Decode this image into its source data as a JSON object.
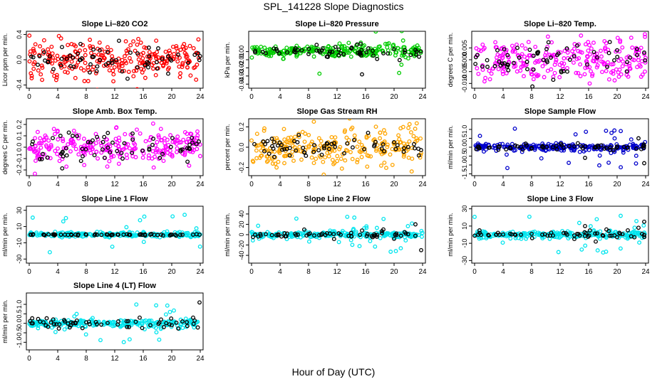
{
  "page": {
    "title": "SPL_141228  Slope Diagnostics",
    "xlabel": "Hour of Day (UTC)"
  },
  "chart_data": [
    {
      "type": "scatter",
      "title": "Slope Li–820 CO2",
      "ylabel": "Licor ppm per min.",
      "color": "#ff0000",
      "xlim": [
        0,
        24
      ],
      "ylim": [
        -0.45,
        0.45
      ],
      "xticks": [
        0,
        4,
        8,
        12,
        16,
        20,
        24
      ],
      "yticks": [
        -0.4,
        0,
        0.4
      ],
      "ytick_labels": [
        "-0.4",
        "0.0",
        "0.4"
      ],
      "grid": false,
      "spread": 0.14,
      "outlier": 0.35,
      "outlier_rate": 0.05,
      "black_spread": 0.1,
      "series": [
        {
          "name": "",
          "points": [
            [
              0.3,
              0.05
            ],
            [
              1.2,
              -0.08
            ],
            [
              2.1,
              0.12
            ],
            [
              3.4,
              -0.15
            ],
            [
              4.6,
              0.2
            ],
            [
              5.8,
              -0.1
            ],
            [
              7.2,
              0.25
            ],
            [
              8.5,
              -0.2
            ],
            [
              9.9,
              0.15
            ],
            [
              11.1,
              -0.05
            ],
            [
              12.6,
              0.3
            ],
            [
              13.8,
              -0.3
            ],
            [
              15.2,
              0.1
            ],
            [
              16.7,
              -0.12
            ],
            [
              18.1,
              0.18
            ],
            [
              19.5,
              -0.22
            ],
            [
              20.9,
              0.08
            ],
            [
              22.3,
              -0.05
            ],
            [
              23.7,
              0.1
            ]
          ]
        }
      ]
    },
    {
      "type": "scatter",
      "title": "Slope Li–820 Pressure",
      "ylabel": "kPa per min.",
      "color": "#00cc00",
      "xlim": [
        0,
        24
      ],
      "ylim": [
        -0.045,
        0.025
      ],
      "xticks": [
        0,
        4,
        8,
        12,
        16,
        20,
        24
      ],
      "yticks": [
        -0.04,
        -0.03,
        -0.02,
        -0.01,
        0
      ],
      "ytick_labels": [
        "-0.04",
        "-0.03",
        "-0.02",
        "-0.01",
        "0.00"
      ],
      "grid": false,
      "spread": 0.004,
      "outlier": 0.03,
      "outlier_rate": 0.05,
      "black_spread": 0.004,
      "series": [
        {
          "name": "",
          "points": [
            [
              0.5,
              0.001
            ],
            [
              2.0,
              -0.002
            ],
            [
              3.5,
              0.003
            ],
            [
              5.0,
              -0.001
            ],
            [
              6.5,
              0.002
            ],
            [
              8.0,
              -0.003
            ],
            [
              9.5,
              0.001
            ],
            [
              11.0,
              0.0
            ],
            [
              12.5,
              -0.002
            ],
            [
              14.0,
              0.004
            ],
            [
              15.5,
              -0.028
            ],
            [
              17.0,
              0.001
            ],
            [
              18.5,
              -0.002
            ],
            [
              20.0,
              0.003
            ],
            [
              21.5,
              -0.001
            ],
            [
              23.0,
              0.002
            ]
          ]
        }
      ]
    },
    {
      "type": "scatter",
      "title": "Slope Li–820 Temp.",
      "ylabel": "degrees C per min.",
      "color": "#ff00ff",
      "xlim": [
        0,
        24
      ],
      "ylim": [
        -0.012,
        0.012
      ],
      "xticks": [
        0,
        4,
        8,
        12,
        16,
        20,
        24
      ],
      "yticks": [
        -0.01,
        -0.005,
        0,
        0.005
      ],
      "ytick_labels": [
        "-0.010",
        "-0.005",
        "0.000",
        "0.005"
      ],
      "grid": false,
      "spread": 0.0045,
      "outlier": 0.009,
      "outlier_rate": 0.05,
      "black_spread": 0.003,
      "series": [
        {
          "name": "",
          "points": [
            [
              0.4,
              0.002
            ],
            [
              1.8,
              -0.003
            ],
            [
              3.2,
              0.004
            ],
            [
              4.6,
              -0.002
            ],
            [
              6.0,
              0.005
            ],
            [
              7.4,
              -0.004
            ],
            [
              8.8,
              0.003
            ],
            [
              10.2,
              -0.001
            ],
            [
              11.6,
              0.002
            ],
            [
              13.0,
              -0.005
            ],
            [
              14.4,
              0.006
            ],
            [
              15.8,
              -0.002
            ],
            [
              17.2,
              0.001
            ],
            [
              18.6,
              -0.003
            ],
            [
              20.0,
              0.004
            ],
            [
              21.4,
              -0.001
            ],
            [
              22.8,
              0.002
            ],
            [
              23.8,
              0.003
            ]
          ]
        }
      ]
    },
    {
      "type": "scatter",
      "title": "Slope Amb. Box Temp.",
      "ylabel": "degrees C per min.",
      "color": "#ff00ff",
      "xlim": [
        0,
        24
      ],
      "ylim": [
        -0.25,
        0.25
      ],
      "xticks": [
        0,
        4,
        8,
        12,
        16,
        20,
        24
      ],
      "yticks": [
        -0.2,
        -0.1,
        0,
        0.1,
        0.2
      ],
      "ytick_labels": [
        "-0.2",
        "-0.1",
        "0.0",
        "0.1",
        "0.2"
      ],
      "grid": false,
      "spread": 0.07,
      "outlier": 0.18,
      "outlier_rate": 0.04,
      "black_spread": 0.07,
      "series": [
        {
          "name": "",
          "points": [
            [
              0.5,
              0.05
            ],
            [
              1.9,
              -0.06
            ],
            [
              3.3,
              0.08
            ],
            [
              4.7,
              -0.04
            ],
            [
              6.1,
              0.1
            ],
            [
              7.5,
              -0.08
            ],
            [
              8.9,
              0.06
            ],
            [
              10.3,
              -0.02
            ],
            [
              11.7,
              0.04
            ],
            [
              13.1,
              -0.1
            ],
            [
              14.5,
              0.12
            ],
            [
              15.9,
              -0.03
            ],
            [
              17.3,
              0.02
            ],
            [
              18.7,
              -0.06
            ],
            [
              20.1,
              0.08
            ],
            [
              21.5,
              -0.02
            ],
            [
              22.9,
              0.04
            ],
            [
              23.8,
              0.05
            ]
          ]
        }
      ]
    },
    {
      "type": "scatter",
      "title": "Slope Gas Stream RH",
      "ylabel": "percent per min.",
      "color": "#ffa500",
      "xlim": [
        0,
        24
      ],
      "ylim": [
        -0.28,
        0.28
      ],
      "xticks": [
        0,
        4,
        8,
        12,
        16,
        20,
        24
      ],
      "yticks": [
        -0.2,
        0,
        0.2
      ],
      "ytick_labels": [
        "-0.2",
        "0.0",
        "0.2"
      ],
      "grid": false,
      "spread": 0.09,
      "outlier": 0.22,
      "outlier_rate": 0.04,
      "black_spread": 0.05,
      "series": [
        {
          "name": "",
          "points": [
            [
              0.4,
              0.03
            ],
            [
              1.8,
              -0.04
            ],
            [
              3.2,
              0.05
            ],
            [
              4.6,
              -0.02
            ],
            [
              6.0,
              0.06
            ],
            [
              7.4,
              -0.05
            ],
            [
              8.8,
              0.02
            ],
            [
              10.2,
              -0.01
            ],
            [
              11.6,
              0.04
            ],
            [
              13.0,
              -0.06
            ],
            [
              14.4,
              0.07
            ],
            [
              15.8,
              -0.02
            ],
            [
              17.2,
              0.01
            ],
            [
              18.6,
              -0.04
            ],
            [
              20.0,
              0.05
            ],
            [
              21.4,
              -0.01
            ],
            [
              22.8,
              0.03
            ]
          ]
        }
      ]
    },
    {
      "type": "scatter",
      "title": "Slope Sample Flow",
      "ylabel": "ml/min per min.",
      "color": "#0000cc",
      "xlim": [
        0,
        24
      ],
      "ylim": [
        -1.6,
        1.6
      ],
      "xticks": [
        0,
        4,
        8,
        12,
        16,
        20,
        24
      ],
      "yticks": [
        -1.5,
        -1,
        -0.5,
        0,
        0.5,
        1
      ],
      "ytick_labels": [
        "-1.5",
        "-1.0",
        "-0.5",
        "0.0",
        "0.5",
        "1.0"
      ],
      "grid": false,
      "spread": 0.1,
      "outlier": 1.2,
      "outlier_rate": 0.12,
      "black_spread": 0.08,
      "series": [
        {
          "name": "",
          "points": [
            [
              0.5,
              0.02
            ],
            [
              2.0,
              -0.03
            ],
            [
              3.5,
              0.04
            ],
            [
              5.0,
              -0.02
            ],
            [
              6.5,
              0.03
            ],
            [
              8.0,
              -0.04
            ],
            [
              9.5,
              0.02
            ],
            [
              11.0,
              0.0
            ],
            [
              12.5,
              -0.02
            ],
            [
              14.0,
              0.05
            ],
            [
              15.5,
              -0.6
            ],
            [
              17.0,
              0.02
            ],
            [
              18.5,
              -0.03
            ],
            [
              20.0,
              0.04
            ],
            [
              21.5,
              -0.02
            ],
            [
              23.0,
              0.5
            ],
            [
              23.8,
              -0.9
            ]
          ]
        }
      ]
    },
    {
      "type": "scatter",
      "title": "Slope Line 1 Flow",
      "ylabel": "ml/min per min.",
      "color": "#00e5ee",
      "xlim": [
        0,
        24
      ],
      "ylim": [
        -35,
        35
      ],
      "xticks": [
        0,
        4,
        8,
        12,
        16,
        20,
        24
      ],
      "yticks": [
        -30,
        -10,
        10,
        30
      ],
      "ytick_labels": [
        "-30",
        "-10",
        "10",
        "30"
      ],
      "grid": false,
      "spread": 1.5,
      "outlier": 25,
      "outlier_rate": 0.08,
      "black_spread": 0.5,
      "series": [
        {
          "name": "",
          "points": [
            [
              0.5,
              0
            ],
            [
              2,
              0
            ],
            [
              3.5,
              0
            ],
            [
              5,
              0
            ],
            [
              6.5,
              0
            ],
            [
              8,
              0
            ],
            [
              9.5,
              0
            ],
            [
              11,
              0
            ],
            [
              12.5,
              0
            ],
            [
              14,
              0
            ],
            [
              15.5,
              0
            ],
            [
              17,
              0
            ],
            [
              18.5,
              0
            ],
            [
              20,
              0
            ],
            [
              21.5,
              0
            ],
            [
              23,
              0
            ],
            [
              23.9,
              0
            ]
          ]
        }
      ]
    },
    {
      "type": "scatter",
      "title": "Slope Line 2 Flow",
      "ylabel": "ml/min per min.",
      "color": "#00e5ee",
      "xlim": [
        0,
        24
      ],
      "ylim": [
        -55,
        55
      ],
      "xticks": [
        0,
        4,
        8,
        12,
        16,
        20,
        24
      ],
      "yticks": [
        -40,
        -20,
        0,
        20,
        40
      ],
      "ytick_labels": [
        "-40",
        "-20",
        "0",
        "20",
        "40"
      ],
      "grid": false,
      "spread": 3,
      "outlier": 35,
      "outlier_rate": 0.1,
      "black_spread": 3,
      "series": [
        {
          "name": "",
          "points": [
            [
              0.5,
              0
            ],
            [
              2,
              1
            ],
            [
              3.5,
              -1
            ],
            [
              5,
              2
            ],
            [
              6.5,
              0
            ],
            [
              8,
              1
            ],
            [
              9.5,
              -1
            ],
            [
              11,
              2
            ],
            [
              12.5,
              0
            ],
            [
              14,
              -3
            ],
            [
              15.5,
              8
            ],
            [
              17,
              -5
            ],
            [
              18.5,
              10
            ],
            [
              20,
              -8
            ],
            [
              21.5,
              5
            ],
            [
              23,
              20
            ],
            [
              23.8,
              -30
            ]
          ]
        }
      ]
    },
    {
      "type": "scatter",
      "title": "Slope Line 3 Flow",
      "ylabel": "ml/min per min.",
      "color": "#00e5ee",
      "xlim": [
        0,
        24
      ],
      "ylim": [
        -33,
        33
      ],
      "xticks": [
        0,
        4,
        8,
        12,
        16,
        20,
        24
      ],
      "yticks": [
        -30,
        -10,
        10,
        30
      ],
      "ytick_labels": [
        "-30",
        "-10",
        "10",
        "30"
      ],
      "grid": false,
      "spread": 2,
      "outlier": 22,
      "outlier_rate": 0.08,
      "black_spread": 2,
      "series": [
        {
          "name": "",
          "points": [
            [
              0.5,
              0
            ],
            [
              2,
              -1
            ],
            [
              3.5,
              0
            ],
            [
              5,
              1
            ],
            [
              6.5,
              0
            ],
            [
              8,
              1
            ],
            [
              9.5,
              0
            ],
            [
              11,
              -1
            ],
            [
              12.5,
              2
            ],
            [
              14,
              -5
            ],
            [
              15.5,
              10
            ],
            [
              17,
              -8
            ],
            [
              18.5,
              6
            ],
            [
              20,
              -3
            ],
            [
              21.5,
              5
            ],
            [
              23,
              8
            ],
            [
              23.8,
              15
            ]
          ]
        }
      ]
    },
    {
      "type": "scatter",
      "title": "Slope Line 4 (LT) Flow",
      "ylabel": "ml/min per min.",
      "color": "#00e5ee",
      "xlim": [
        0,
        24
      ],
      "ylim": [
        -1.4,
        1.6
      ],
      "xticks": [
        0,
        4,
        8,
        12,
        16,
        20,
        24
      ],
      "yticks": [
        -1,
        -0.5,
        0,
        0.5,
        1
      ],
      "ytick_labels": [
        "-1.0",
        "-0.5",
        "0.0",
        "0.5",
        "1.0"
      ],
      "grid": false,
      "spread": 0.1,
      "outlier": 1.0,
      "outlier_rate": 0.1,
      "black_spread": 0.12,
      "series": [
        {
          "name": "",
          "points": [
            [
              0.5,
              0
            ],
            [
              2,
              0.05
            ],
            [
              3.5,
              -0.05
            ],
            [
              5,
              0.1
            ],
            [
              6.5,
              0
            ],
            [
              8,
              0.05
            ],
            [
              9.5,
              -0.05
            ],
            [
              11,
              0.02
            ],
            [
              12.5,
              0.1
            ],
            [
              14,
              -0.2
            ],
            [
              15.5,
              0.3
            ],
            [
              17,
              -0.1
            ],
            [
              18.5,
              0.2
            ],
            [
              20,
              -0.1
            ],
            [
              21.5,
              0.1
            ],
            [
              23,
              0.3
            ],
            [
              23.9,
              1.1
            ]
          ]
        }
      ]
    }
  ]
}
